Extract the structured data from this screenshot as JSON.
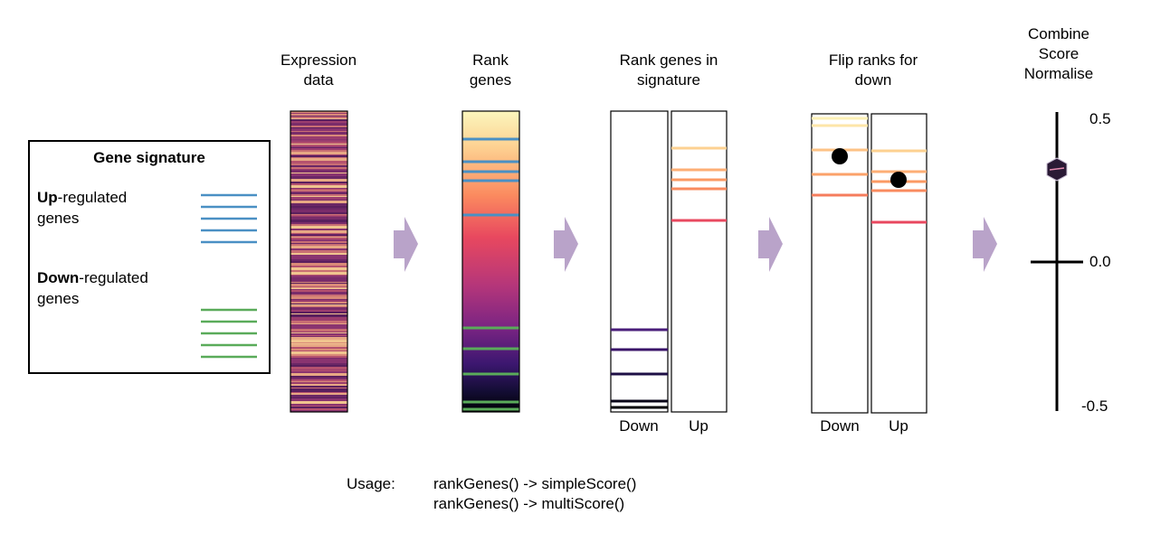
{
  "steps": {
    "expression": "Expression\ndata",
    "rank": "Rank\ngenes",
    "rank_signature": "Rank genes in\nsignature",
    "flip": "Flip ranks for\ndown",
    "combine": "Combine\nScore\nNormalise"
  },
  "signature_box": {
    "title": "Gene signature",
    "up_bold": "Up",
    "up_rest": "-regulated",
    "up_line2": "genes",
    "down_bold": "Down",
    "down_rest": "-regulated",
    "down_line2": "genes"
  },
  "panel_labels": {
    "down": "Down",
    "up": "Up"
  },
  "axis": {
    "top": "0.5",
    "mid": "0.0",
    "bottom": "-0.5"
  },
  "usage": {
    "label": "Usage:",
    "line1": "rankGenes() -> simpleScore()",
    "line2": "rankGenes() -> multiScore()"
  },
  "colors": {
    "up_gene": "#4a90c4",
    "down_gene": "#5aab5a",
    "arrow": "#b9a3c9"
  }
}
